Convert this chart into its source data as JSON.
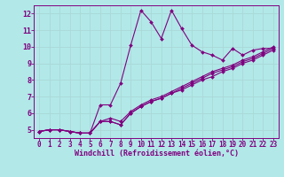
{
  "xlabel": "Windchill (Refroidissement éolien,°C)",
  "ylabel": "",
  "bg_color": "#b2e8e8",
  "grid_color": "#c8e8e8",
  "line_color": "#800080",
  "xlim": [
    -0.5,
    23.5
  ],
  "ylim": [
    4.5,
    12.5
  ],
  "xticks": [
    0,
    1,
    2,
    3,
    4,
    5,
    6,
    7,
    8,
    9,
    10,
    11,
    12,
    13,
    14,
    15,
    16,
    17,
    18,
    19,
    20,
    21,
    22,
    23
  ],
  "yticks": [
    5,
    6,
    7,
    8,
    9,
    10,
    11,
    12
  ],
  "series": [
    [
      4.9,
      5.0,
      5.0,
      4.9,
      4.8,
      4.8,
      6.5,
      6.5,
      7.8,
      10.1,
      12.2,
      11.5,
      10.5,
      12.2,
      11.1,
      10.1,
      9.7,
      9.5,
      9.2,
      9.9,
      9.5,
      9.8,
      9.9,
      9.9
    ],
    [
      4.9,
      5.0,
      5.0,
      4.9,
      4.8,
      4.8,
      5.5,
      5.5,
      5.3,
      6.0,
      6.4,
      6.7,
      6.9,
      7.2,
      7.4,
      7.7,
      8.0,
      8.2,
      8.5,
      8.7,
      9.0,
      9.2,
      9.5,
      9.8
    ],
    [
      4.9,
      5.0,
      5.0,
      4.9,
      4.8,
      4.8,
      5.5,
      5.5,
      5.3,
      6.0,
      6.4,
      6.7,
      6.9,
      7.2,
      7.5,
      7.8,
      8.1,
      8.4,
      8.6,
      8.8,
      9.1,
      9.3,
      9.6,
      9.9
    ],
    [
      4.9,
      5.0,
      5.0,
      4.9,
      4.8,
      4.8,
      5.5,
      5.7,
      5.5,
      6.1,
      6.5,
      6.8,
      7.0,
      7.3,
      7.6,
      7.9,
      8.2,
      8.5,
      8.7,
      8.9,
      9.2,
      9.4,
      9.7,
      10.0
    ]
  ],
  "xlabel_fontsize": 6,
  "tick_fontsize": 5.5,
  "marker_size": 2.0,
  "linewidth": 0.8
}
